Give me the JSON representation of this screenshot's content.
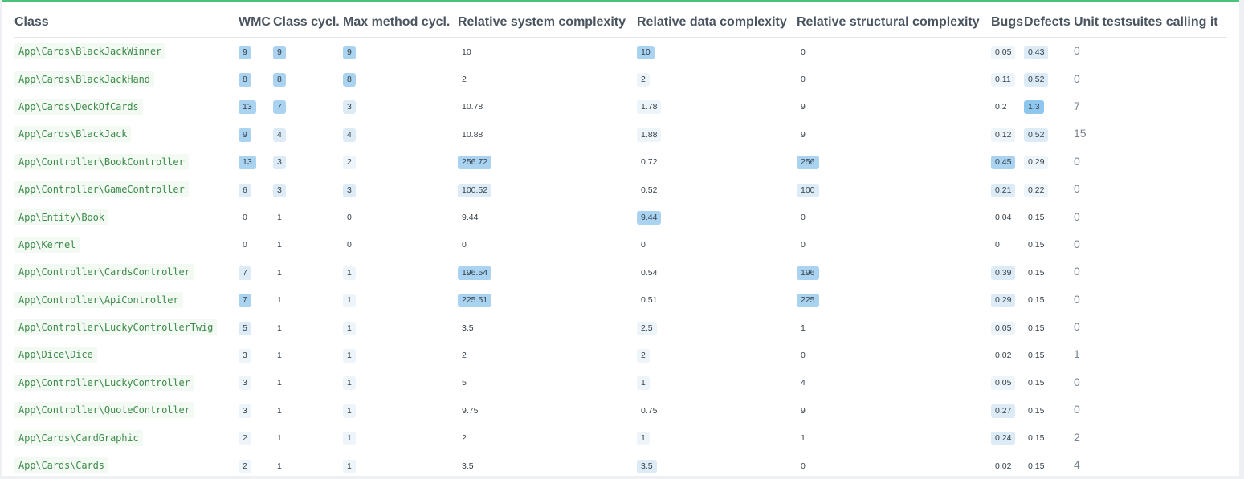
{
  "headers": [
    "Class",
    "WMC",
    "Class cycl.",
    "Max method cycl.",
    "Relative system complexity",
    "Relative data complexity",
    "Relative structural complexity",
    "Bugs",
    "Defects",
    "Unit testsuites calling it"
  ],
  "rows": [
    {
      "class": "App\\Cards\\BlackJackWinner",
      "wmc": "9",
      "class_cycl": "9",
      "max_method_cycl": "9",
      "rel_system": "10",
      "rel_data": "10",
      "rel_struct": "0",
      "bugs": "0.05",
      "defects": "0.43",
      "unit": "0",
      "lv": [
        3,
        3,
        3,
        0,
        3,
        0,
        1,
        2
      ]
    },
    {
      "class": "App\\Cards\\BlackJackHand",
      "wmc": "8",
      "class_cycl": "8",
      "max_method_cycl": "8",
      "rel_system": "2",
      "rel_data": "2",
      "rel_struct": "0",
      "bugs": "0.11",
      "defects": "0.52",
      "unit": "0",
      "lv": [
        3,
        3,
        3,
        0,
        1,
        0,
        1,
        2
      ]
    },
    {
      "class": "App\\Cards\\DeckOfCards",
      "wmc": "13",
      "class_cycl": "7",
      "max_method_cycl": "3",
      "rel_system": "10.78",
      "rel_data": "1.78",
      "rel_struct": "9",
      "bugs": "0.2",
      "defects": "1.3",
      "unit": "7",
      "lv": [
        3,
        3,
        2,
        0,
        1,
        0,
        0,
        4
      ]
    },
    {
      "class": "App\\Cards\\BlackJack",
      "wmc": "9",
      "class_cycl": "4",
      "max_method_cycl": "4",
      "rel_system": "10.88",
      "rel_data": "1.88",
      "rel_struct": "9",
      "bugs": "0.12",
      "defects": "0.52",
      "unit": "15",
      "lv": [
        3,
        2,
        2,
        0,
        1,
        0,
        1,
        2
      ]
    },
    {
      "class": "App\\Controller\\BookController",
      "wmc": "13",
      "class_cycl": "3",
      "max_method_cycl": "2",
      "rel_system": "256.72",
      "rel_data": "0.72",
      "rel_struct": "256",
      "bugs": "0.45",
      "defects": "0.29",
      "unit": "0",
      "lv": [
        3,
        2,
        1,
        3,
        0,
        3,
        3,
        1
      ]
    },
    {
      "class": "App\\Controller\\GameController",
      "wmc": "6",
      "class_cycl": "3",
      "max_method_cycl": "3",
      "rel_system": "100.52",
      "rel_data": "0.52",
      "rel_struct": "100",
      "bugs": "0.21",
      "defects": "0.22",
      "unit": "0",
      "lv": [
        2,
        2,
        2,
        2,
        0,
        2,
        2,
        1
      ]
    },
    {
      "class": "App\\Entity\\Book",
      "wmc": "0",
      "class_cycl": "1",
      "max_method_cycl": "0",
      "rel_system": "9.44",
      "rel_data": "9.44",
      "rel_struct": "0",
      "bugs": "0.04",
      "defects": "0.15",
      "unit": "0",
      "lv": [
        0,
        0,
        0,
        0,
        3,
        0,
        0,
        0
      ]
    },
    {
      "class": "App\\Kernel",
      "wmc": "0",
      "class_cycl": "1",
      "max_method_cycl": "0",
      "rel_system": "0",
      "rel_data": "0",
      "rel_struct": "0",
      "bugs": "0",
      "defects": "0.15",
      "unit": "0",
      "lv": [
        0,
        0,
        0,
        0,
        0,
        0,
        0,
        0
      ]
    },
    {
      "class": "App\\Controller\\CardsController",
      "wmc": "7",
      "class_cycl": "1",
      "max_method_cycl": "1",
      "rel_system": "196.54",
      "rel_data": "0.54",
      "rel_struct": "196",
      "bugs": "0.39",
      "defects": "0.15",
      "unit": "0",
      "lv": [
        2,
        0,
        1,
        3,
        0,
        3,
        2,
        0
      ]
    },
    {
      "class": "App\\Controller\\ApiController",
      "wmc": "7",
      "class_cycl": "1",
      "max_method_cycl": "1",
      "rel_system": "225.51",
      "rel_data": "0.51",
      "rel_struct": "225",
      "bugs": "0.29",
      "defects": "0.15",
      "unit": "0",
      "lv": [
        3,
        0,
        1,
        3,
        0,
        3,
        2,
        0
      ]
    },
    {
      "class": "App\\Controller\\LuckyControllerTwig",
      "wmc": "5",
      "class_cycl": "1",
      "max_method_cycl": "1",
      "rel_system": "3.5",
      "rel_data": "2.5",
      "rel_struct": "1",
      "bugs": "0.05",
      "defects": "0.15",
      "unit": "0",
      "lv": [
        2,
        0,
        1,
        0,
        1,
        0,
        1,
        0
      ]
    },
    {
      "class": "App\\Dice\\Dice",
      "wmc": "3",
      "class_cycl": "1",
      "max_method_cycl": "1",
      "rel_system": "2",
      "rel_data": "2",
      "rel_struct": "0",
      "bugs": "0.02",
      "defects": "0.15",
      "unit": "1",
      "lv": [
        1,
        0,
        1,
        0,
        1,
        0,
        0,
        0
      ]
    },
    {
      "class": "App\\Controller\\LuckyController",
      "wmc": "3",
      "class_cycl": "1",
      "max_method_cycl": "1",
      "rel_system": "5",
      "rel_data": "1",
      "rel_struct": "4",
      "bugs": "0.05",
      "defects": "0.15",
      "unit": "0",
      "lv": [
        1,
        0,
        1,
        0,
        1,
        0,
        1,
        0
      ]
    },
    {
      "class": "App\\Controller\\QuoteController",
      "wmc": "3",
      "class_cycl": "1",
      "max_method_cycl": "1",
      "rel_system": "9.75",
      "rel_data": "0.75",
      "rel_struct": "9",
      "bugs": "0.27",
      "defects": "0.15",
      "unit": "0",
      "lv": [
        1,
        0,
        1,
        0,
        0,
        0,
        2,
        0
      ]
    },
    {
      "class": "App\\Cards\\CardGraphic",
      "wmc": "2",
      "class_cycl": "1",
      "max_method_cycl": "1",
      "rel_system": "2",
      "rel_data": "1",
      "rel_struct": "1",
      "bugs": "0.24",
      "defects": "0.15",
      "unit": "2",
      "lv": [
        1,
        0,
        1,
        0,
        1,
        0,
        2,
        0
      ]
    },
    {
      "class": "App\\Cards\\Cards",
      "wmc": "2",
      "class_cycl": "1",
      "max_method_cycl": "1",
      "rel_system": "3.5",
      "rel_data": "3.5",
      "rel_struct": "0",
      "bugs": "0.02",
      "defects": "0.15",
      "unit": "4",
      "lv": [
        1,
        0,
        1,
        0,
        2,
        0,
        0,
        0
      ]
    }
  ]
}
